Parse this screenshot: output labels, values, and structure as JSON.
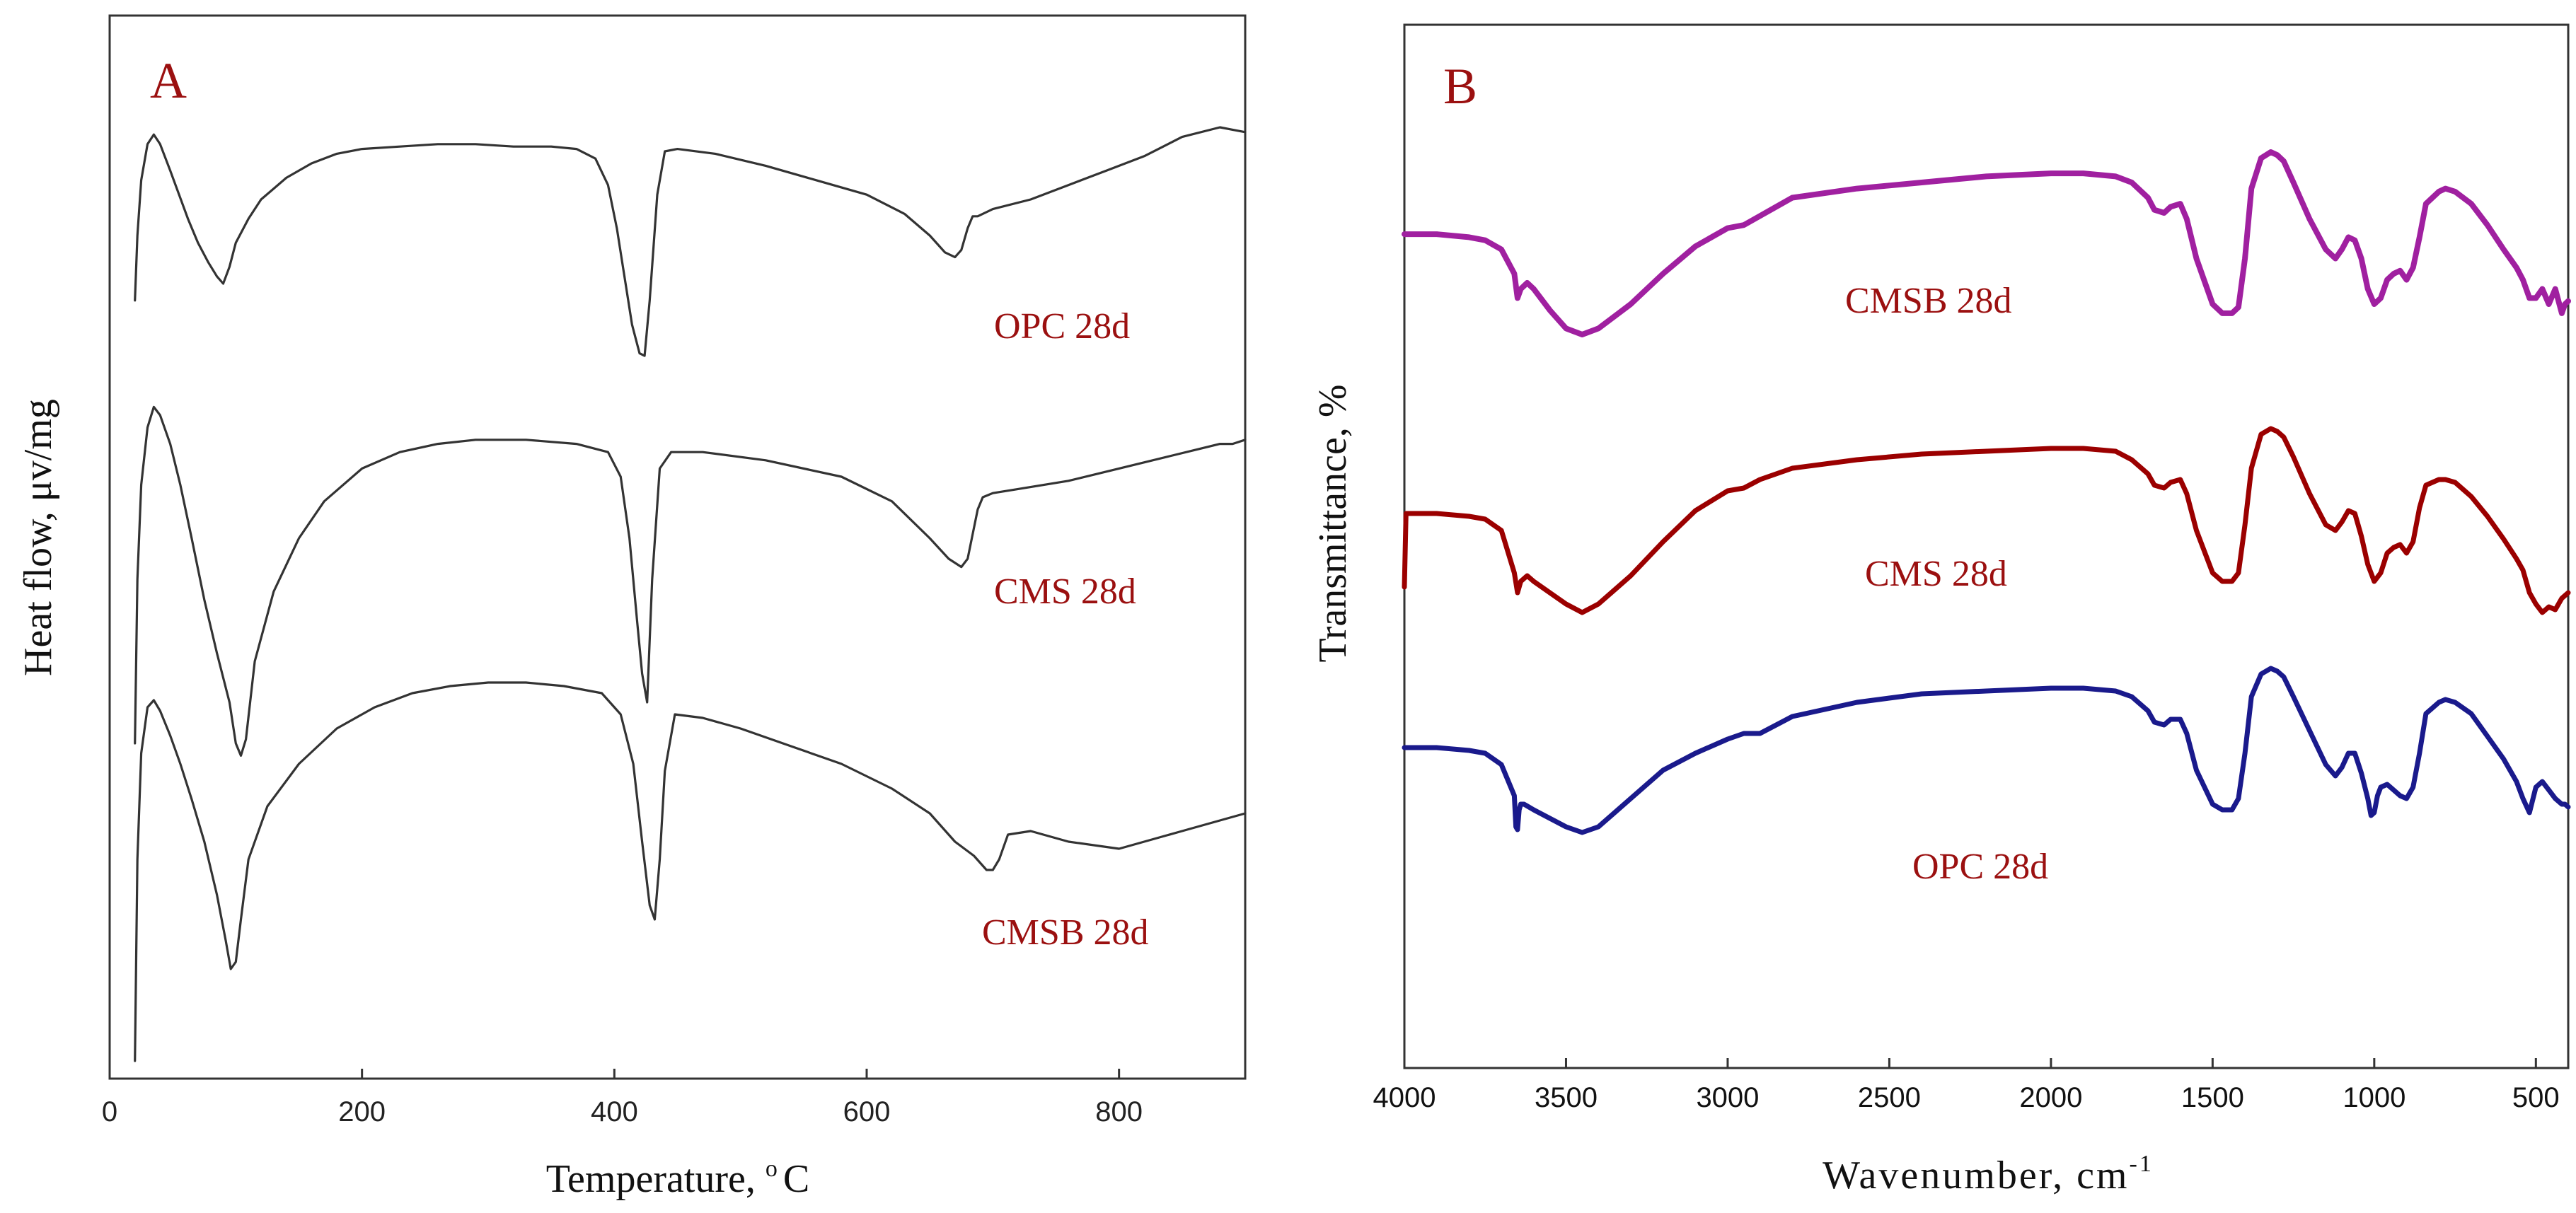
{
  "chart_data": [
    {
      "panel": "A",
      "type": "line",
      "xlabel": "Temperature, °C",
      "xlabel_main": "Temperature,",
      "xlabel_unit": "o",
      "xlabel_unit_tail": "C",
      "ylabel": "Heat flow, μv/mg",
      "xlim": [
        0,
        900
      ],
      "xticks": [
        0,
        200,
        400,
        600,
        800
      ],
      "grid": false,
      "legend": "inline labels",
      "series": [
        {
          "name": "OPC 28d",
          "label": "OPC 28d",
          "color": "#333333",
          "x": [
            20,
            22,
            25,
            30,
            35,
            40,
            48,
            55,
            62,
            70,
            78,
            85,
            90,
            95,
            100,
            110,
            120,
            140,
            160,
            180,
            200,
            230,
            260,
            290,
            320,
            350,
            370,
            385,
            395,
            402,
            408,
            414,
            420,
            424,
            428,
            434,
            440,
            450,
            480,
            520,
            560,
            600,
            630,
            650,
            662,
            670,
            675,
            680,
            684,
            688,
            700,
            730,
            760,
            790,
            820,
            850,
            880,
            890,
            900
          ],
          "y": [
            0.28,
            0.55,
            0.78,
            0.93,
            0.97,
            0.93,
            0.82,
            0.72,
            0.62,
            0.52,
            0.44,
            0.38,
            0.35,
            0.42,
            0.52,
            0.62,
            0.7,
            0.79,
            0.85,
            0.89,
            0.91,
            0.92,
            0.93,
            0.93,
            0.92,
            0.92,
            0.91,
            0.87,
            0.76,
            0.58,
            0.38,
            0.18,
            0.06,
            0.05,
            0.28,
            0.72,
            0.9,
            0.91,
            0.89,
            0.84,
            0.78,
            0.72,
            0.64,
            0.55,
            0.48,
            0.46,
            0.49,
            0.58,
            0.63,
            0.63,
            0.66,
            0.7,
            0.76,
            0.82,
            0.88,
            0.96,
            1.0,
            0.99,
            0.98
          ]
        },
        {
          "name": "CMS 28d",
          "label": "CMS 28d",
          "color": "#333333",
          "x": [
            20,
            22,
            25,
            30,
            35,
            40,
            48,
            56,
            65,
            75,
            85,
            95,
            100,
            104,
            108,
            115,
            130,
            150,
            170,
            200,
            230,
            260,
            290,
            330,
            370,
            395,
            405,
            412,
            418,
            422,
            426,
            430,
            436,
            445,
            470,
            520,
            580,
            620,
            650,
            665,
            675,
            680,
            684,
            688,
            692,
            700,
            720,
            760,
            800,
            840,
            880,
            890,
            900
          ],
          "y": [
            0.05,
            0.45,
            0.68,
            0.82,
            0.87,
            0.85,
            0.78,
            0.68,
            0.55,
            0.4,
            0.27,
            0.15,
            0.05,
            0.02,
            0.06,
            0.25,
            0.42,
            0.55,
            0.64,
            0.72,
            0.76,
            0.78,
            0.79,
            0.79,
            0.78,
            0.76,
            0.7,
            0.55,
            0.35,
            0.22,
            0.15,
            0.45,
            0.72,
            0.76,
            0.76,
            0.74,
            0.7,
            0.64,
            0.55,
            0.5,
            0.48,
            0.5,
            0.56,
            0.62,
            0.65,
            0.66,
            0.67,
            0.69,
            0.72,
            0.75,
            0.78,
            0.78,
            0.79
          ]
        },
        {
          "name": "CMSB 28d",
          "label": "CMSB 28d",
          "color": "#333333",
          "x": [
            20,
            22,
            25,
            30,
            35,
            40,
            48,
            56,
            65,
            75,
            85,
            92,
            96,
            100,
            104,
            110,
            125,
            150,
            180,
            210,
            240,
            270,
            300,
            330,
            360,
            390,
            405,
            415,
            422,
            428,
            432,
            436,
            440,
            448,
            470,
            500,
            540,
            580,
            620,
            650,
            670,
            685,
            695,
            700,
            705,
            712,
            730,
            760,
            800,
            850,
            880,
            900
          ],
          "y": [
            -0.62,
            -0.05,
            0.25,
            0.38,
            0.4,
            0.37,
            0.3,
            0.22,
            0.12,
            0.0,
            -0.15,
            -0.28,
            -0.36,
            -0.34,
            -0.22,
            -0.05,
            0.1,
            0.22,
            0.32,
            0.38,
            0.42,
            0.44,
            0.45,
            0.45,
            0.44,
            0.42,
            0.36,
            0.22,
            0.0,
            -0.18,
            -0.22,
            -0.05,
            0.2,
            0.36,
            0.35,
            0.32,
            0.27,
            0.22,
            0.15,
            0.08,
            0.0,
            -0.04,
            -0.08,
            -0.08,
            -0.05,
            0.02,
            0.03,
            0.0,
            -0.02,
            0.03,
            0.06,
            0.08
          ]
        }
      ]
    },
    {
      "panel": "B",
      "type": "line",
      "xlabel": "Wavenumber, cm-1",
      "xlabel_main": "Wavenumber, cm",
      "xlabel_sup": "-1",
      "ylabel": "Transmittance, %",
      "xlim": [
        4000,
        400
      ],
      "xticks": [
        4000,
        3500,
        3000,
        2500,
        2000,
        1500,
        1000,
        500
      ],
      "grid": false,
      "legend": "inline labels",
      "series": [
        {
          "name": "CMSB 28d",
          "label": "CMSB 28d",
          "color": "#a020a0",
          "x": [
            4000,
            3900,
            3800,
            3750,
            3700,
            3660,
            3650,
            3640,
            3620,
            3600,
            3550,
            3500,
            3450,
            3400,
            3300,
            3200,
            3100,
            3000,
            2950,
            2900,
            2850,
            2800,
            2600,
            2400,
            2200,
            2000,
            1900,
            1800,
            1750,
            1700,
            1680,
            1650,
            1630,
            1600,
            1580,
            1550,
            1500,
            1470,
            1440,
            1420,
            1400,
            1380,
            1350,
            1320,
            1300,
            1280,
            1250,
            1200,
            1150,
            1120,
            1100,
            1080,
            1060,
            1040,
            1020,
            1000,
            980,
            960,
            940,
            920,
            900,
            880,
            860,
            840,
            800,
            780,
            750,
            700,
            650,
            600,
            560,
            540,
            520,
            500,
            480,
            460,
            440,
            420,
            410,
            400
          ],
          "y": [
            0.73,
            0.73,
            0.72,
            0.71,
            0.68,
            0.6,
            0.52,
            0.55,
            0.57,
            0.55,
            0.48,
            0.42,
            0.4,
            0.42,
            0.5,
            0.6,
            0.69,
            0.75,
            0.76,
            0.79,
            0.82,
            0.85,
            0.88,
            0.9,
            0.92,
            0.93,
            0.93,
            0.92,
            0.9,
            0.85,
            0.81,
            0.8,
            0.82,
            0.83,
            0.78,
            0.65,
            0.5,
            0.47,
            0.47,
            0.49,
            0.65,
            0.88,
            0.98,
            1.0,
            0.99,
            0.97,
            0.9,
            0.78,
            0.68,
            0.65,
            0.68,
            0.72,
            0.71,
            0.65,
            0.55,
            0.5,
            0.52,
            0.58,
            0.6,
            0.61,
            0.58,
            0.62,
            0.72,
            0.83,
            0.87,
            0.88,
            0.87,
            0.83,
            0.76,
            0.68,
            0.62,
            0.58,
            0.52,
            0.52,
            0.55,
            0.5,
            0.55,
            0.47,
            0.5,
            0.51
          ]
        },
        {
          "name": "CMS 28d",
          "label": "CMS 28d",
          "color": "#9b0000",
          "x": [
            4000,
            3995,
            3900,
            3800,
            3750,
            3700,
            3660,
            3650,
            3640,
            3620,
            3600,
            3550,
            3500,
            3450,
            3400,
            3300,
            3200,
            3100,
            3000,
            2950,
            2900,
            2850,
            2800,
            2600,
            2400,
            2200,
            2000,
            1900,
            1800,
            1750,
            1700,
            1680,
            1650,
            1630,
            1600,
            1580,
            1550,
            1500,
            1470,
            1440,
            1420,
            1400,
            1380,
            1350,
            1320,
            1300,
            1280,
            1250,
            1200,
            1150,
            1120,
            1100,
            1080,
            1060,
            1040,
            1020,
            1000,
            980,
            960,
            940,
            920,
            900,
            880,
            860,
            840,
            800,
            780,
            750,
            700,
            650,
            600,
            560,
            540,
            520,
            500,
            480,
            460,
            440,
            420,
            410,
            400
          ],
          "y": [
            0.2,
            0.46,
            0.46,
            0.45,
            0.44,
            0.4,
            0.25,
            0.18,
            0.22,
            0.24,
            0.22,
            0.18,
            0.14,
            0.11,
            0.14,
            0.24,
            0.36,
            0.47,
            0.54,
            0.55,
            0.58,
            0.6,
            0.62,
            0.65,
            0.67,
            0.68,
            0.69,
            0.69,
            0.68,
            0.65,
            0.6,
            0.56,
            0.55,
            0.57,
            0.58,
            0.53,
            0.4,
            0.25,
            0.22,
            0.22,
            0.25,
            0.42,
            0.62,
            0.74,
            0.76,
            0.75,
            0.73,
            0.66,
            0.53,
            0.42,
            0.4,
            0.43,
            0.47,
            0.46,
            0.38,
            0.28,
            0.22,
            0.25,
            0.32,
            0.34,
            0.35,
            0.32,
            0.36,
            0.48,
            0.56,
            0.58,
            0.58,
            0.57,
            0.52,
            0.45,
            0.37,
            0.3,
            0.26,
            0.18,
            0.14,
            0.11,
            0.13,
            0.12,
            0.16,
            0.17,
            0.18
          ]
        },
        {
          "name": "OPC 28d",
          "label": "OPC 28d",
          "color": "#1a1a8c",
          "x": [
            4000,
            3900,
            3800,
            3750,
            3700,
            3660,
            3655,
            3650,
            3645,
            3640,
            3630,
            3600,
            3550,
            3500,
            3450,
            3400,
            3300,
            3200,
            3100,
            3000,
            2950,
            2900,
            2850,
            2800,
            2600,
            2400,
            2200,
            2000,
            1900,
            1800,
            1750,
            1700,
            1680,
            1650,
            1630,
            1600,
            1580,
            1550,
            1500,
            1470,
            1440,
            1420,
            1400,
            1380,
            1350,
            1320,
            1300,
            1280,
            1250,
            1200,
            1150,
            1120,
            1100,
            1080,
            1060,
            1040,
            1020,
            1010,
            1000,
            990,
            980,
            960,
            940,
            920,
            900,
            880,
            860,
            840,
            800,
            780,
            750,
            700,
            650,
            600,
            560,
            540,
            520,
            500,
            480,
            460,
            440,
            420,
            410,
            400
          ],
          "y": [
            -0.38,
            -0.38,
            -0.39,
            -0.4,
            -0.44,
            -0.55,
            -0.66,
            -0.67,
            -0.6,
            -0.58,
            -0.58,
            -0.6,
            -0.63,
            -0.66,
            -0.68,
            -0.66,
            -0.56,
            -0.46,
            -0.4,
            -0.35,
            -0.33,
            -0.33,
            -0.3,
            -0.27,
            -0.22,
            -0.19,
            -0.18,
            -0.17,
            -0.17,
            -0.18,
            -0.2,
            -0.25,
            -0.29,
            -0.3,
            -0.28,
            -0.28,
            -0.33,
            -0.46,
            -0.58,
            -0.6,
            -0.6,
            -0.56,
            -0.4,
            -0.2,
            -0.12,
            -0.1,
            -0.11,
            -0.13,
            -0.2,
            -0.32,
            -0.44,
            -0.48,
            -0.45,
            -0.4,
            -0.4,
            -0.47,
            -0.56,
            -0.62,
            -0.61,
            -0.55,
            -0.52,
            -0.51,
            -0.53,
            -0.55,
            -0.56,
            -0.52,
            -0.4,
            -0.26,
            -0.22,
            -0.21,
            -0.22,
            -0.26,
            -0.34,
            -0.42,
            -0.5,
            -0.56,
            -0.61,
            -0.52,
            -0.5,
            -0.53,
            -0.56,
            -0.58,
            -0.58,
            -0.59
          ]
        }
      ]
    }
  ]
}
